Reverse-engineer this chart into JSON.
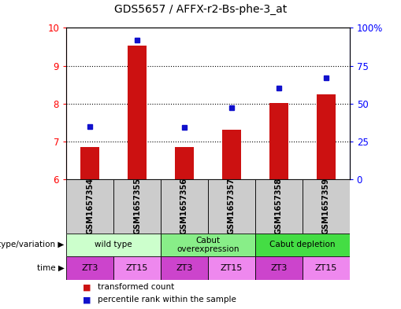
{
  "title": "GDS5657 / AFFX-r2-Bs-phe-3_at",
  "samples": [
    "GSM1657354",
    "GSM1657355",
    "GSM1657356",
    "GSM1657357",
    "GSM1657358",
    "GSM1657359"
  ],
  "transformed_counts": [
    6.85,
    9.52,
    6.85,
    7.3,
    8.02,
    8.25
  ],
  "percentile_ranks": [
    35,
    92,
    34,
    47,
    60,
    67
  ],
  "ylim_left": [
    6,
    10
  ],
  "ylim_right": [
    0,
    100
  ],
  "yticks_left": [
    6,
    7,
    8,
    9,
    10
  ],
  "yticks_right": [
    0,
    25,
    50,
    75,
    100
  ],
  "ytick_labels_right": [
    "0",
    "25",
    "50",
    "75",
    "100%"
  ],
  "bar_color": "#cc1111",
  "dot_color": "#1111cc",
  "bar_bottom": 6.0,
  "genotype_groups": [
    {
      "label": "wild type",
      "span": [
        0,
        2
      ],
      "color": "#ccffcc"
    },
    {
      "label": "Cabut\noverexpression",
      "span": [
        2,
        4
      ],
      "color": "#88ee88"
    },
    {
      "label": "Cabut depletion",
      "span": [
        4,
        6
      ],
      "color": "#44dd44"
    }
  ],
  "time_groups": [
    {
      "label": "ZT3",
      "span": [
        0,
        1
      ],
      "color": "#cc44cc"
    },
    {
      "label": "ZT15",
      "span": [
        1,
        2
      ],
      "color": "#ee88ee"
    },
    {
      "label": "ZT3",
      "span": [
        2,
        3
      ],
      "color": "#cc44cc"
    },
    {
      "label": "ZT15",
      "span": [
        3,
        4
      ],
      "color": "#ee88ee"
    },
    {
      "label": "ZT3",
      "span": [
        4,
        5
      ],
      "color": "#cc44cc"
    },
    {
      "label": "ZT15",
      "span": [
        5,
        6
      ],
      "color": "#ee88ee"
    }
  ],
  "legend_items": [
    {
      "label": "transformed count",
      "color": "#cc1111"
    },
    {
      "label": "percentile rank within the sample",
      "color": "#1111cc"
    }
  ],
  "genotype_label": "genotype/variation",
  "time_label": "time",
  "bg_color_samples": "#cccccc",
  "title_fontsize": 10,
  "grid_yticks": [
    7,
    8,
    9
  ],
  "bar_width": 0.4,
  "dot_size": 5
}
